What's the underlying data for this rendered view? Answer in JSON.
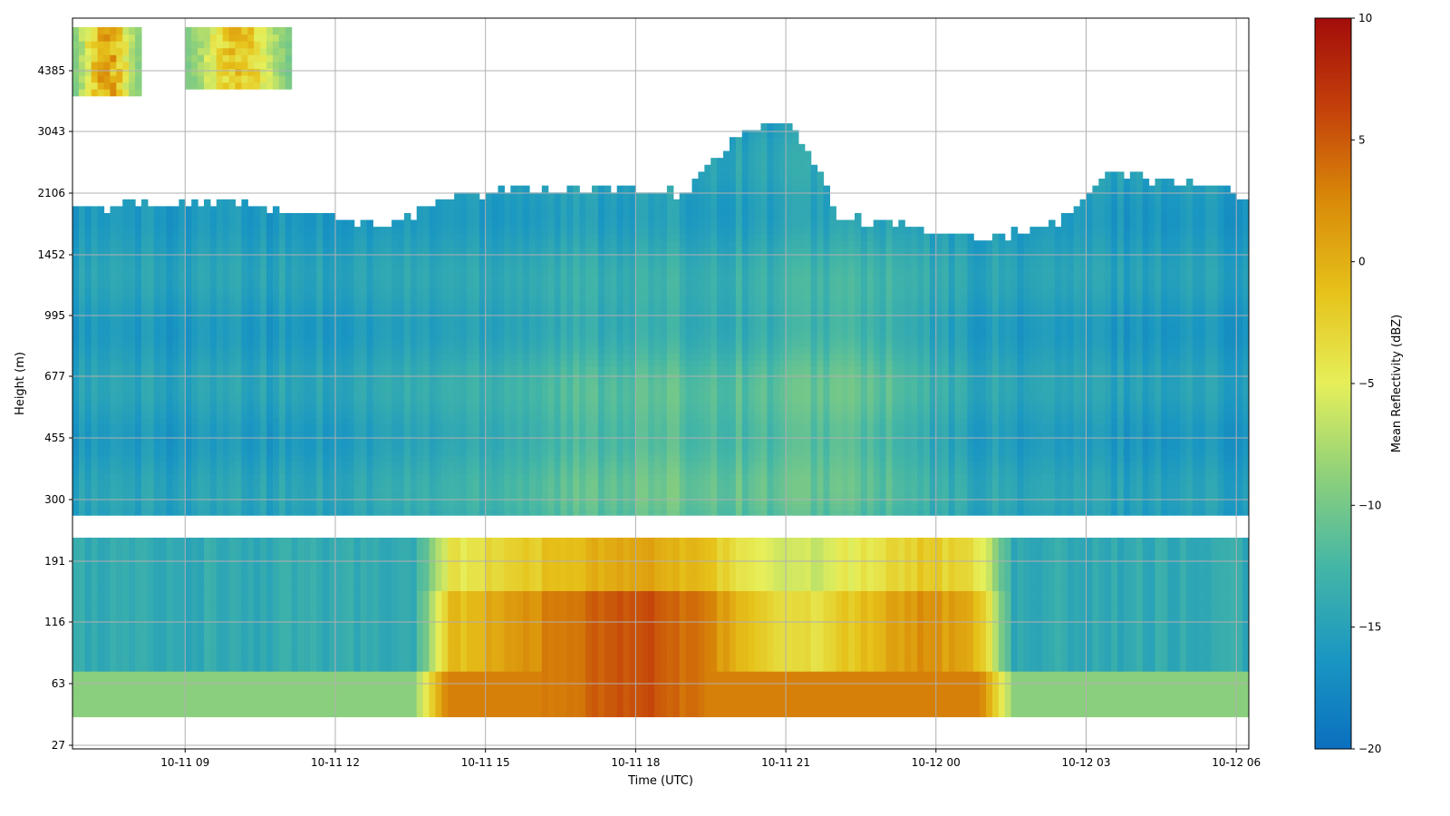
{
  "chart_data": {
    "type": "heatmap",
    "title": "",
    "xlabel": "Time (UTC)",
    "ylabel": "Height (m)",
    "x_ticks": [
      "10-11 09",
      "10-11 12",
      "10-11 15",
      "10-11 18",
      "10-11 21",
      "10-12 00",
      "10-12 03",
      "10-12 06"
    ],
    "y_ticks": [
      "27",
      "63",
      "116",
      "191",
      "300",
      "455",
      "677",
      "995",
      "1452",
      "2106",
      "3043",
      "4385"
    ],
    "x_range": [
      "10-11 06:45",
      "10-12 06:15"
    ],
    "grid": true,
    "colorbar": {
      "label": "Mean Reflectivity (dBZ)",
      "range": [
        -20,
        10
      ],
      "ticks": [
        "10",
        "5",
        "0",
        "−5",
        "−10",
        "−15",
        "−20"
      ],
      "colormap": [
        "#0a6fbf",
        "#1a97c2",
        "#44b6a6",
        "#8fd17a",
        "#e6ef5a",
        "#e6c21a",
        "#d98a09",
        "#c4410a",
        "#a30c0a"
      ]
    },
    "echo_top_height_m": [
      {
        "time": "10-11 06:45",
        "top_m": 1900
      },
      {
        "time": "10-11 08:00",
        "top_m": 1980
      },
      {
        "time": "10-11 09:00",
        "top_m": 2000
      },
      {
        "time": "10-11 10:30",
        "top_m": 1950
      },
      {
        "time": "10-11 12:00",
        "top_m": 1800
      },
      {
        "time": "10-11 13:00",
        "top_m": 1700
      },
      {
        "time": "10-11 14:00",
        "top_m": 2000
      },
      {
        "time": "10-11 15:30",
        "top_m": 2150
      },
      {
        "time": "10-11 17:00",
        "top_m": 2200
      },
      {
        "time": "10-11 19:00",
        "top_m": 2100
      },
      {
        "time": "10-11 20:00",
        "top_m": 2900
      },
      {
        "time": "10-11 21:00",
        "top_m": 3300
      },
      {
        "time": "10-11 22:00",
        "top_m": 1850
      },
      {
        "time": "10-11 23:30",
        "top_m": 1700
      },
      {
        "time": "10-12 01:00",
        "top_m": 1600
      },
      {
        "time": "10-12 02:30",
        "top_m": 1800
      },
      {
        "time": "10-12 03:30",
        "top_m": 2400
      },
      {
        "time": "10-12 06:15",
        "top_m": 2100
      }
    ],
    "upper_cloud_patches": [
      {
        "time_range": [
          "10-11 06:45",
          "10-11 08:00"
        ],
        "height_range_m": [
          3800,
          5600
        ],
        "max_dBZ": 4
      },
      {
        "time_range": [
          "10-11 09:00",
          "10-11 11:00"
        ],
        "height_range_m": [
          3900,
          5600
        ],
        "max_dBZ": 1
      }
    ],
    "data_gap_height_m": [
      230,
      270
    ],
    "high_reflectivity_region": {
      "time_range": [
        "10-11 13:30",
        "10-12 01:30"
      ],
      "height_range_m": [
        40,
        240
      ],
      "max_dBZ": 6
    }
  }
}
